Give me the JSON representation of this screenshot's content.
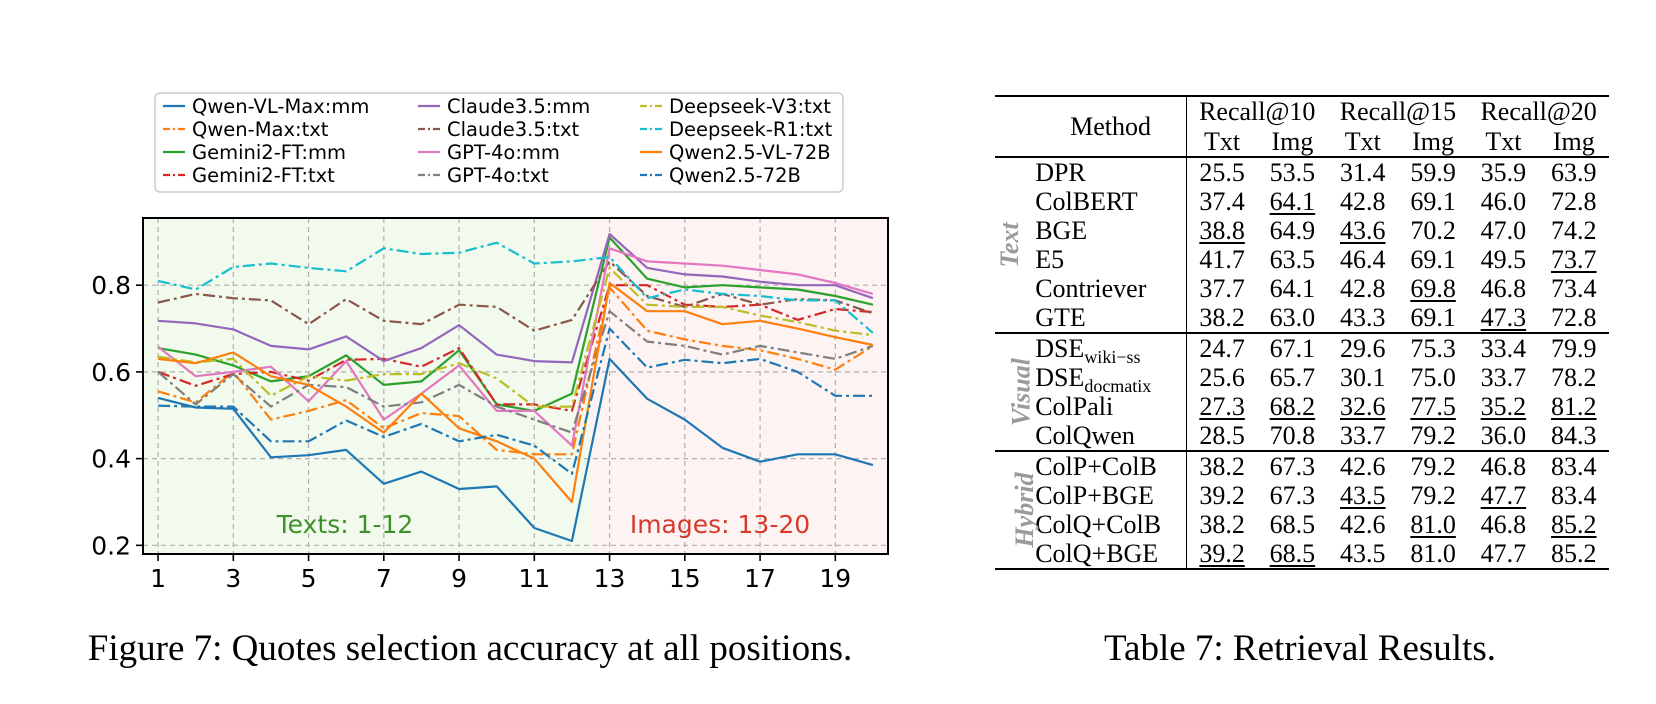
{
  "chart_data": {
    "type": "line",
    "x": [
      1,
      2,
      3,
      4,
      5,
      6,
      7,
      8,
      9,
      10,
      11,
      12,
      13,
      14,
      15,
      16,
      17,
      18,
      19,
      20
    ],
    "xticks": [
      1,
      3,
      5,
      7,
      9,
      11,
      13,
      15,
      17,
      19
    ],
    "yticks": [
      0.2,
      0.4,
      0.6,
      0.8
    ],
    "xlim": [
      0.6,
      20.4
    ],
    "ylim": [
      0.18,
      0.955
    ],
    "grid": true,
    "legend_position": "top",
    "regions": [
      {
        "label": "Texts: 1-12",
        "x_range": [
          0.6,
          12.5
        ],
        "color": "#f1faec",
        "label_color": "#3f8f2a"
      },
      {
        "label": "Images: 13-20",
        "x_range": [
          12.5,
          20.4
        ],
        "color": "#fcf3f2",
        "label_color": "#d63a2c"
      }
    ],
    "series": [
      {
        "name": "Qwen-VL-Max:mm",
        "color": "#1f77b4",
        "dash": "solid",
        "values": [
          0.54,
          0.518,
          0.515,
          0.403,
          0.408,
          0.42,
          0.342,
          0.37,
          0.33,
          0.336,
          0.24,
          0.21,
          0.63,
          0.538,
          0.49,
          0.425,
          0.393,
          0.41,
          0.41,
          0.385
        ]
      },
      {
        "name": "Qwen-Max:txt",
        "color": "#ff7f0e",
        "dash": "dashdot",
        "values": [
          0.555,
          0.53,
          0.6,
          0.49,
          0.51,
          0.535,
          0.47,
          0.505,
          0.498,
          0.42,
          0.41,
          0.41,
          0.795,
          0.695,
          0.675,
          0.66,
          0.65,
          0.63,
          0.605,
          0.66
        ]
      },
      {
        "name": "Gemini2-FT:mm",
        "color": "#2ca02c",
        "dash": "solid",
        "values": [
          0.655,
          0.64,
          0.615,
          0.578,
          0.59,
          0.638,
          0.57,
          0.578,
          0.65,
          0.525,
          0.51,
          0.55,
          0.91,
          0.815,
          0.795,
          0.8,
          0.795,
          0.79,
          0.775,
          0.755
        ]
      },
      {
        "name": "Gemini2-FT:txt",
        "color": "#d62728",
        "dash": "dashdot",
        "values": [
          0.6,
          0.568,
          0.595,
          0.6,
          0.58,
          0.628,
          0.63,
          0.612,
          0.655,
          0.525,
          0.525,
          0.51,
          0.8,
          0.8,
          0.755,
          0.75,
          0.755,
          0.72,
          0.745,
          0.738
        ]
      },
      {
        "name": "Claude3.5:mm",
        "color": "#9467bd",
        "dash": "solid",
        "values": [
          0.718,
          0.712,
          0.698,
          0.66,
          0.652,
          0.682,
          0.625,
          0.655,
          0.708,
          0.64,
          0.625,
          0.622,
          0.918,
          0.84,
          0.825,
          0.82,
          0.808,
          0.8,
          0.8,
          0.77
        ]
      },
      {
        "name": "Claude3.5:txt",
        "color": "#8c564b",
        "dash": "dashdot",
        "values": [
          0.76,
          0.78,
          0.77,
          0.765,
          0.71,
          0.768,
          0.718,
          0.71,
          0.755,
          0.75,
          0.695,
          0.72,
          0.855,
          0.775,
          0.75,
          0.78,
          0.755,
          0.768,
          0.765,
          0.735
        ]
      },
      {
        "name": "GPT-4o:mm",
        "color": "#e377c2",
        "dash": "solid",
        "values": [
          0.658,
          0.59,
          0.6,
          0.612,
          0.532,
          0.625,
          0.49,
          0.55,
          0.615,
          0.51,
          0.51,
          0.43,
          0.885,
          0.855,
          0.85,
          0.845,
          0.835,
          0.825,
          0.805,
          0.78
        ]
      },
      {
        "name": "GPT-4o:txt",
        "color": "#7f7f7f",
        "dash": "dashdot",
        "values": [
          0.6,
          0.525,
          0.595,
          0.52,
          0.57,
          0.565,
          0.52,
          0.53,
          0.57,
          0.52,
          0.49,
          0.46,
          0.74,
          0.67,
          0.66,
          0.64,
          0.66,
          0.645,
          0.63,
          0.66
        ]
      },
      {
        "name": "Deepseek-V3:txt",
        "color": "#bcbd22",
        "dash": "dashdot",
        "values": [
          0.635,
          0.622,
          0.63,
          0.545,
          0.59,
          0.58,
          0.595,
          0.595,
          0.62,
          0.585,
          0.52,
          0.52,
          0.84,
          0.755,
          0.75,
          0.75,
          0.73,
          0.715,
          0.695,
          0.685
        ]
      },
      {
        "name": "Deepseek-R1:txt",
        "color": "#17becf",
        "dash": "dashdot",
        "values": [
          0.81,
          0.79,
          0.842,
          0.85,
          0.84,
          0.832,
          0.885,
          0.872,
          0.875,
          0.898,
          0.85,
          0.855,
          0.865,
          0.77,
          0.79,
          0.78,
          0.775,
          0.765,
          0.765,
          0.69
        ]
      },
      {
        "name": "Qwen2.5-VL-72B",
        "color": "#ff7f0e",
        "dash": "solid",
        "values": [
          0.63,
          0.62,
          0.645,
          0.59,
          0.57,
          0.52,
          0.46,
          0.55,
          0.47,
          0.44,
          0.4,
          0.3,
          0.805,
          0.74,
          0.74,
          0.71,
          0.718,
          0.7,
          0.68,
          0.662
        ]
      },
      {
        "name": "Qwen2.5-72B",
        "color": "#1f77b4",
        "dash": "dashdot",
        "values": [
          0.522,
          0.52,
          0.52,
          0.44,
          0.44,
          0.488,
          0.45,
          0.48,
          0.44,
          0.455,
          0.43,
          0.365,
          0.7,
          0.61,
          0.628,
          0.62,
          0.63,
          0.6,
          0.545,
          0.545
        ]
      }
    ]
  },
  "figure": {
    "caption": "Figure 7: Quotes selection accuracy at all positions."
  },
  "table": {
    "caption": "Table 7: Retrieval Results.",
    "header_method": "Method",
    "header_groups": [
      "Recall@10",
      "Recall@15",
      "Recall@20"
    ],
    "header_sub": [
      "Txt",
      "Img",
      "Txt",
      "Img",
      "Txt",
      "Img"
    ],
    "groups": [
      {
        "name": "Text",
        "rows": [
          {
            "method": "DPR",
            "values": [
              "25.5",
              "53.5",
              "31.4",
              "59.9",
              "35.9",
              "63.9"
            ],
            "bold": [],
            "underline": []
          },
          {
            "method": "ColBERT",
            "values": [
              "37.4",
              "64.1",
              "42.8",
              "69.1",
              "46.0",
              "72.8"
            ],
            "bold": [],
            "underline": [
              1
            ]
          },
          {
            "method": "BGE",
            "values": [
              "38.8",
              "64.9",
              "43.6",
              "70.2",
              "47.0",
              "74.2"
            ],
            "bold": [
              1,
              3,
              5
            ],
            "underline": [
              0,
              2
            ]
          },
          {
            "method": "E5",
            "values": [
              "41.7",
              "63.5",
              "46.4",
              "69.1",
              "49.5",
              "73.7"
            ],
            "bold": [
              0,
              2,
              4
            ],
            "underline": [
              5
            ]
          },
          {
            "method": "Contriever",
            "values": [
              "37.7",
              "64.1",
              "42.8",
              "69.8",
              "46.8",
              "73.4"
            ],
            "bold": [],
            "underline": [
              3
            ]
          },
          {
            "method": "GTE",
            "values": [
              "38.2",
              "63.0",
              "43.3",
              "69.1",
              "47.3",
              "72.8"
            ],
            "bold": [],
            "underline": [
              4
            ]
          }
        ]
      },
      {
        "name": "Visual",
        "rows": [
          {
            "method": "DSE",
            "method_sub": "wiki−ss",
            "values": [
              "24.7",
              "67.1",
              "29.6",
              "75.3",
              "33.4",
              "79.9"
            ],
            "bold": [],
            "underline": []
          },
          {
            "method": "DSE",
            "method_sub": "docmatix",
            "values": [
              "25.6",
              "65.7",
              "30.1",
              "75.0",
              "33.7",
              "78.2"
            ],
            "bold": [],
            "underline": []
          },
          {
            "method": "ColPali",
            "values": [
              "27.3",
              "68.2",
              "32.6",
              "77.5",
              "35.2",
              "81.2"
            ],
            "bold": [],
            "underline": [
              0,
              1,
              2,
              3,
              4,
              5
            ]
          },
          {
            "method": "ColQwen",
            "values": [
              "28.5",
              "70.8",
              "33.7",
              "79.2",
              "36.0",
              "84.3"
            ],
            "bold": [
              0,
              1,
              2,
              3,
              4,
              5
            ],
            "underline": []
          }
        ]
      },
      {
        "name": "Hybrid",
        "rows": [
          {
            "method": "ColP+ColB",
            "values": [
              "38.2",
              "67.3",
              "42.6",
              "79.2",
              "46.8",
              "83.4"
            ],
            "bold": [],
            "underline": []
          },
          {
            "method": "ColP+BGE",
            "values": [
              "39.2",
              "67.3",
              "43.5",
              "79.2",
              "47.7",
              "83.4"
            ],
            "bold": [
              0
            ],
            "underline": [
              2,
              4
            ]
          },
          {
            "method": "ColQ+ColB",
            "values": [
              "38.2",
              "68.5",
              "42.6",
              "81.0",
              "46.8",
              "85.2"
            ],
            "bold": [
              1
            ],
            "underline": [
              3,
              5
            ]
          },
          {
            "method": "ColQ+BGE",
            "values": [
              "39.2",
              "68.5",
              "43.5",
              "81.0",
              "47.7",
              "85.2"
            ],
            "bold": [
              2,
              3,
              4,
              5
            ],
            "underline": [
              0,
              1
            ]
          }
        ]
      }
    ]
  }
}
